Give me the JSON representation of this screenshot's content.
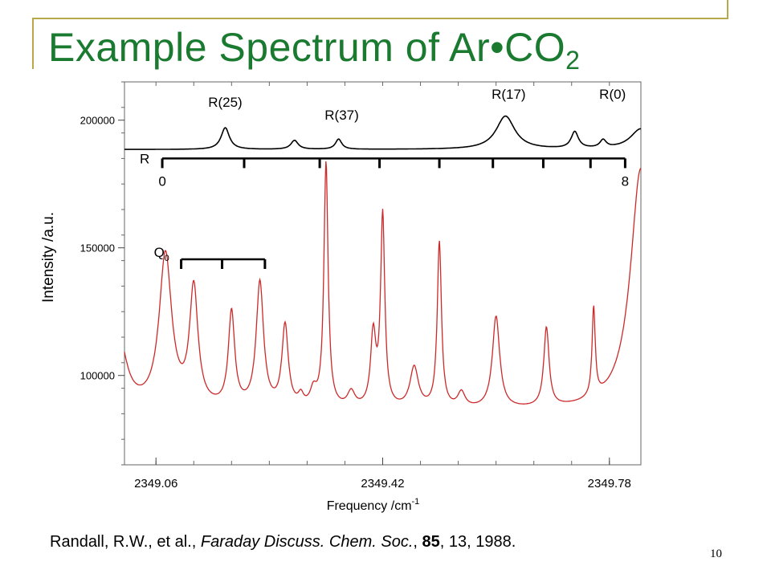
{
  "slide": {
    "title_main": "Example Spectrum of Ar•CO",
    "title_sub": "2",
    "page_number": "10",
    "accent_color": "#1a7a30"
  },
  "citation": {
    "authors": "Randall, R.W., et al., ",
    "journal": "Faraday Discuss. Chem. Soc.",
    "sep1": ", ",
    "volume": "85",
    "rest": ", 13, 1988."
  },
  "chart_data": {
    "type": "line",
    "xlabel": "Frequency /cm",
    "xlabel_sup": "-1",
    "ylabel": "Intensity /a.u.",
    "xlim": [
      2349.01,
      2349.83
    ],
    "ylim": [
      65000,
      215000
    ],
    "x_ticks": [
      "2349.06",
      "2349.42",
      "2349.78"
    ],
    "x_tick_values": [
      2349.06,
      2349.42,
      2349.78
    ],
    "y_ticks": [
      "100000",
      "150000",
      "200000"
    ],
    "y_tick_values": [
      100000,
      150000,
      200000
    ],
    "series": [
      {
        "color": "#000000",
        "baseline": 188500,
        "peaks": [
          [
            2349.17,
            8500,
            0.008
          ],
          [
            2349.28,
            3500,
            0.007
          ],
          [
            2349.35,
            4000,
            0.006
          ],
          [
            2349.615,
            13000,
            0.018
          ],
          [
            2349.725,
            6500,
            0.007
          ],
          [
            2349.77,
            3000,
            0.006
          ],
          [
            2349.83,
            8000,
            0.02
          ]
        ]
      },
      {
        "color": "#cc2a2a",
        "baseline": 86000,
        "peaks": [
          [
            2349.0,
            30000,
            0.015
          ],
          [
            2349.075,
            60000,
            0.012
          ],
          [
            2349.12,
            46000,
            0.008
          ],
          [
            2349.18,
            37000,
            0.006
          ],
          [
            2349.225,
            49000,
            0.007
          ],
          [
            2349.265,
            32000,
            0.006
          ],
          [
            2349.29,
            4000,
            0.005
          ],
          [
            2349.31,
            6000,
            0.006
          ],
          [
            2349.33,
            96000,
            0.004
          ],
          [
            2349.37,
            6000,
            0.007
          ],
          [
            2349.405,
            28000,
            0.005
          ],
          [
            2349.42,
            75000,
            0.004
          ],
          [
            2349.47,
            16000,
            0.008
          ],
          [
            2349.51,
            65000,
            0.004
          ],
          [
            2349.545,
            6000,
            0.007
          ],
          [
            2349.6,
            36000,
            0.007
          ],
          [
            2349.68,
            31000,
            0.005
          ],
          [
            2349.755,
            35000,
            0.003
          ],
          [
            2349.83,
            95000,
            0.02
          ]
        ]
      }
    ],
    "annotations": {
      "r_branch_labels": [
        {
          "text": "R(25)",
          "x": 2349.17
        },
        {
          "text": "R(37)",
          "x": 2349.355
        },
        {
          "text": "R(17)",
          "x": 2349.62
        },
        {
          "text": "R(0)",
          "x": 2349.785
        }
      ],
      "r_comb": {
        "label": "R",
        "start_label": "0",
        "end_label": "8",
        "y": 185000,
        "ticks": [
          2349.07,
          2349.2,
          2349.32,
          2349.415,
          2349.51,
          2349.595,
          2349.675,
          2349.75,
          2349.805
        ]
      },
      "q_comb": {
        "label": "Q",
        "sub": "0",
        "y": 145500,
        "ticks": [
          2349.1,
          2349.165,
          2349.233
        ]
      }
    }
  }
}
